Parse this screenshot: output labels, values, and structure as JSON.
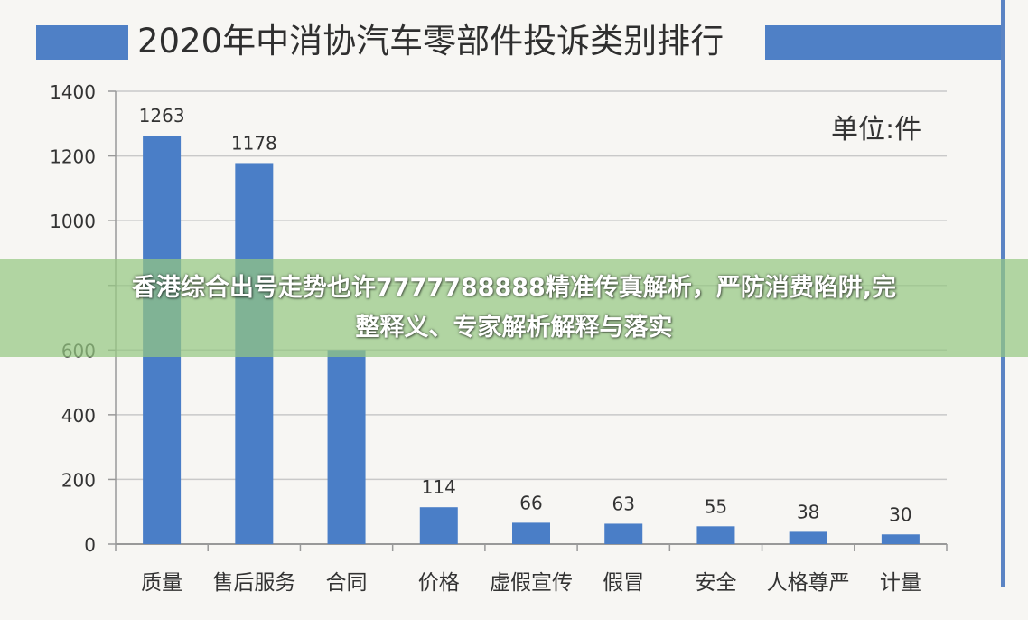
{
  "chart_data": {
    "type": "bar",
    "title": "2020年中消协汽车零部件投诉类别排行",
    "unit_label": "单位:件",
    "categories": [
      "质量",
      "售后服务",
      "合同",
      "价格",
      "虚假宣传",
      "假冒",
      "安全",
      "人格尊严",
      "计量"
    ],
    "values": [
      1263,
      1178,
      600,
      114,
      66,
      63,
      55,
      38,
      30
    ],
    "data_labels": [
      "1263",
      "1178",
      "",
      "114",
      "66",
      "63",
      "55",
      "38",
      "30"
    ],
    "ylim": [
      0,
      1400
    ],
    "yticks": [
      0,
      200,
      400,
      600,
      800,
      1000,
      1200,
      1400
    ],
    "ytick_labels": [
      "0",
      "200",
      "400",
      "600",
      "",
      "1000",
      "1200",
      "1400"
    ],
    "grid": true,
    "bar_color": "#4a7ec7"
  },
  "overlay": {
    "line1": "香港综合出号走势也许7777788888精准传真解析，严防消费陷阱,完",
    "line2": "整释义、专家解析解释与落实"
  }
}
